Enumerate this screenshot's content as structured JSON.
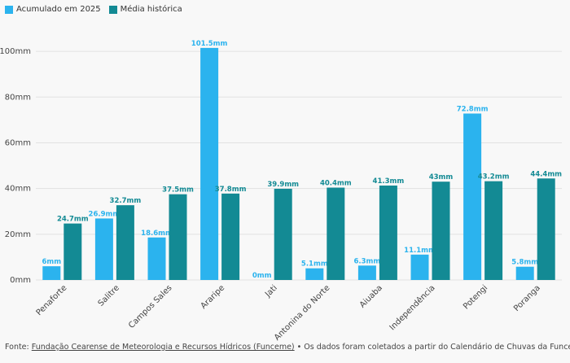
{
  "legend": {
    "series_a": "Acumulado em 2025",
    "series_b": "Média histórica"
  },
  "colors": {
    "series_a": "#2bb3ee",
    "series_b": "#138a94",
    "grid": "#e2e2e2"
  },
  "footer": {
    "prefix": "Fonte: ",
    "link": "Fundação Cearense de Meteorologia e Recursos Hídricos (Funceme)",
    "suffix": " • Os dados foram coletados a partir do Calendário de Chuvas da Funceme"
  },
  "chart_data": {
    "type": "bar",
    "categories": [
      "Penaforte",
      "Salitre",
      "Campos Sales",
      "Araripe",
      "Jati",
      "Antonina do Norte",
      "Aiuaba",
      "Independência",
      "Potengi",
      "Poranga"
    ],
    "series": [
      {
        "name": "Acumulado em 2025",
        "values": [
          6,
          26.9,
          18.6,
          101.5,
          0,
          5.1,
          6.3,
          11.1,
          72.8,
          5.8
        ],
        "labels": [
          "6mm",
          "26.9mm",
          "18.6mm",
          "101.5mm",
          "0mm",
          "5.1mm",
          "6.3mm",
          "11.1mm",
          "72.8mm",
          "5.8mm"
        ]
      },
      {
        "name": "Média histórica",
        "values": [
          24.7,
          32.7,
          37.5,
          37.8,
          39.9,
          40.4,
          41.3,
          43,
          43.2,
          44.4
        ],
        "labels": [
          "24.7mm",
          "32.7mm",
          "37.5mm",
          "37.8mm",
          "39.9mm",
          "40.4mm",
          "41.3mm",
          "43mm",
          "43.2mm",
          "44.4mm"
        ]
      }
    ],
    "y_ticks": [
      {
        "value": 0,
        "label": "0mm"
      },
      {
        "value": 20,
        "label": "20mm"
      },
      {
        "value": 40,
        "label": "40mm"
      },
      {
        "value": 60,
        "label": "60mm"
      },
      {
        "value": 80,
        "label": "80mm"
      },
      {
        "value": 100,
        "label": "100mm"
      }
    ],
    "ylim": [
      0,
      110
    ],
    "grid": true,
    "legend_position": "top-left"
  }
}
